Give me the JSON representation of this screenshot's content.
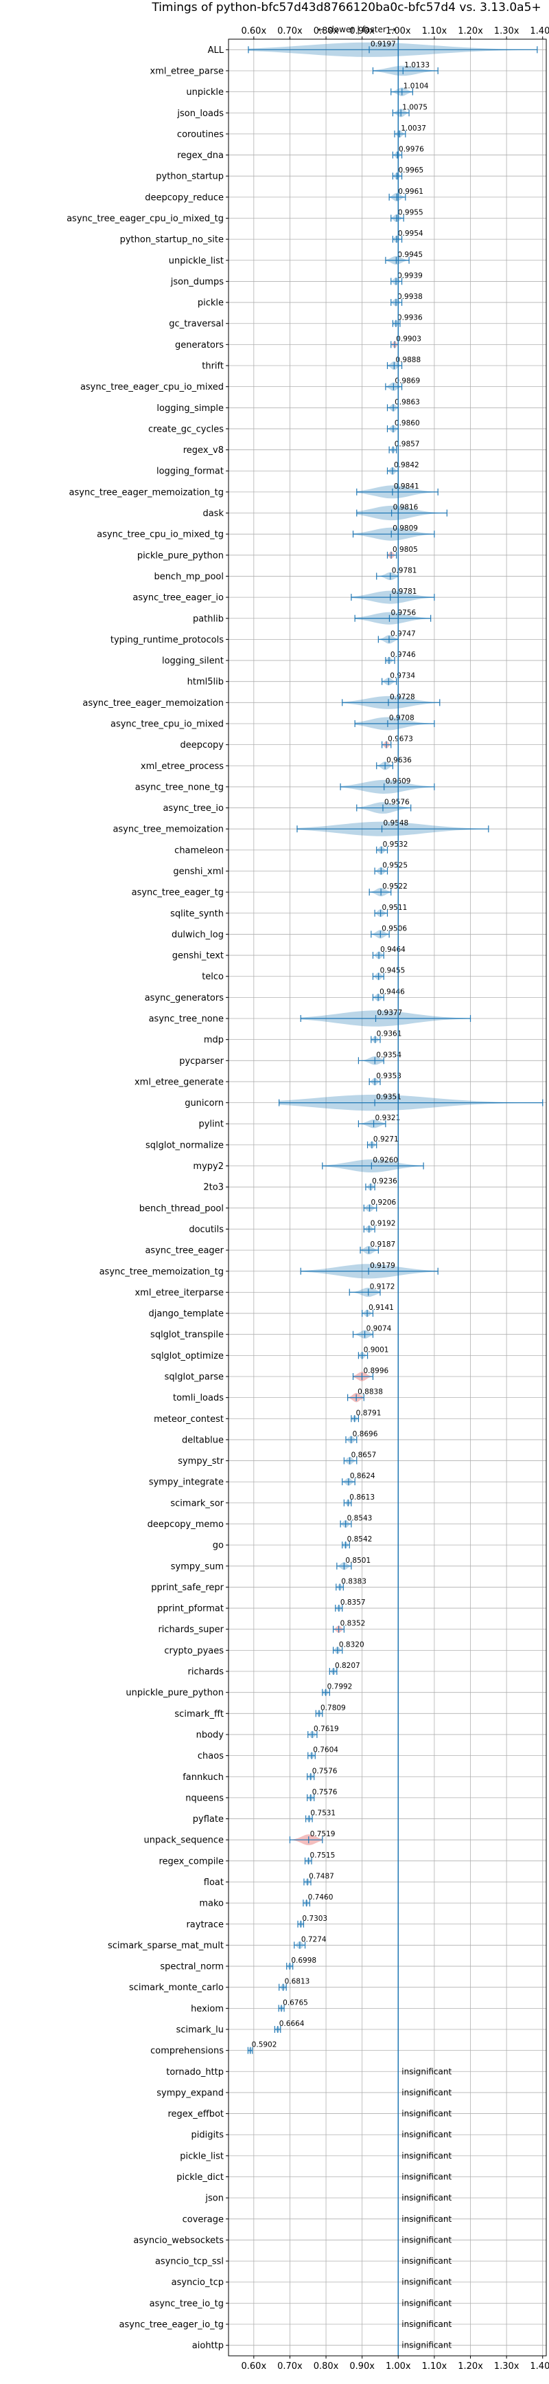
{
  "chart_data": {
    "type": "violin",
    "title": "Timings of python-bfc57d43d8766120ba0c-bfc57d4 vs. 3.13.0a5+",
    "direction_label": "← slower | faster →",
    "x_ticks": [
      "0.60x",
      "0.70x",
      "0.80x",
      "0.90x",
      "1.00x",
      "1.10x",
      "1.20x",
      "1.30x",
      "1.40x"
    ],
    "xlim": [
      0.53,
      1.41
    ],
    "baseline": 1.0,
    "grid": true,
    "colors": {
      "violin": "#1f77b4",
      "significant_slowdown": "#d62728",
      "gridline": "#b0b0b0"
    },
    "benchmarks": [
      {
        "name": "ALL",
        "value": 0.9197,
        "label": "0.9197",
        "spread": 0.06,
        "min": 0.585,
        "max": 1.385
      },
      {
        "name": "xml_etree_parse",
        "value": 1.0133,
        "label": "1.0133",
        "spread": 0.03,
        "min": 0.93,
        "max": 1.11
      },
      {
        "name": "unpickle",
        "value": 1.0104,
        "label": "1.0104",
        "spread": 0.02,
        "min": 0.98,
        "max": 1.04
      },
      {
        "name": "json_loads",
        "value": 1.0075,
        "label": "1.0075",
        "spread": 0.02,
        "min": 0.985,
        "max": 1.03
      },
      {
        "name": "coroutines",
        "value": 1.0037,
        "label": "1.0037",
        "spread": 0.012,
        "min": 0.99,
        "max": 1.02
      },
      {
        "name": "regex_dna",
        "value": 0.9976,
        "label": "0.9976",
        "spread": 0.012,
        "min": 0.985,
        "max": 1.01
      },
      {
        "name": "python_startup",
        "value": 0.9965,
        "label": "0.9965",
        "spread": 0.012,
        "min": 0.985,
        "max": 1.01
      },
      {
        "name": "deepcopy_reduce",
        "value": 0.9961,
        "label": "0.9961",
        "spread": 0.02,
        "min": 0.975,
        "max": 1.02
      },
      {
        "name": "async_tree_eager_cpu_io_mixed_tg",
        "value": 0.9955,
        "label": "0.9955",
        "spread": 0.015,
        "min": 0.98,
        "max": 1.015
      },
      {
        "name": "python_startup_no_site",
        "value": 0.9954,
        "label": "0.9954",
        "spread": 0.012,
        "min": 0.985,
        "max": 1.01
      },
      {
        "name": "unpickle_list",
        "value": 0.9945,
        "label": "0.9945",
        "spread": 0.02,
        "min": 0.965,
        "max": 1.03
      },
      {
        "name": "json_dumps",
        "value": 0.9939,
        "label": "0.9939",
        "spread": 0.015,
        "min": 0.98,
        "max": 1.01
      },
      {
        "name": "pickle",
        "value": 0.9938,
        "label": "0.9938",
        "spread": 0.015,
        "min": 0.98,
        "max": 1.01
      },
      {
        "name": "gc_traversal",
        "value": 0.9936,
        "label": "0.9936",
        "spread": 0.012,
        "min": 0.985,
        "max": 1.005
      },
      {
        "name": "generators",
        "value": 0.9903,
        "label": "0.9903",
        "spread": 0.012,
        "min": 0.98,
        "max": 1.0,
        "slower": true
      },
      {
        "name": "thrift",
        "value": 0.9888,
        "label": "0.9888",
        "spread": 0.02,
        "min": 0.97,
        "max": 1.01
      },
      {
        "name": "async_tree_eager_cpu_io_mixed",
        "value": 0.9869,
        "label": "0.9869",
        "spread": 0.02,
        "min": 0.965,
        "max": 1.01
      },
      {
        "name": "logging_simple",
        "value": 0.9863,
        "label": "0.9863",
        "spread": 0.015,
        "min": 0.97,
        "max": 1.0
      },
      {
        "name": "create_gc_cycles",
        "value": 0.986,
        "label": "0.9860",
        "spread": 0.015,
        "min": 0.97,
        "max": 1.0
      },
      {
        "name": "regex_v8",
        "value": 0.9857,
        "label": "0.9857",
        "spread": 0.01,
        "min": 0.975,
        "max": 0.995
      },
      {
        "name": "logging_format",
        "value": 0.9842,
        "label": "0.9842",
        "spread": 0.015,
        "min": 0.97,
        "max": 1.0
      },
      {
        "name": "async_tree_eager_memoization_tg",
        "value": 0.9841,
        "label": "0.9841",
        "spread": 0.05,
        "min": 0.885,
        "max": 1.11
      },
      {
        "name": "dask",
        "value": 0.9816,
        "label": "0.9816",
        "spread": 0.06,
        "min": 0.885,
        "max": 1.135
      },
      {
        "name": "async_tree_cpu_io_mixed_tg",
        "value": 0.9809,
        "label": "0.9809",
        "spread": 0.05,
        "min": 0.875,
        "max": 1.1
      },
      {
        "name": "pickle_pure_python",
        "value": 0.9805,
        "label": "0.9805",
        "spread": 0.012,
        "min": 0.97,
        "max": 0.995,
        "slower": true
      },
      {
        "name": "bench_mp_pool",
        "value": 0.9781,
        "label": "0.9781",
        "spread": 0.015,
        "min": 0.94,
        "max": 1.0
      },
      {
        "name": "async_tree_eager_io",
        "value": 0.9781,
        "label": "0.9781",
        "spread": 0.05,
        "min": 0.87,
        "max": 1.1
      },
      {
        "name": "pathlib",
        "value": 0.9756,
        "label": "0.9756",
        "spread": 0.045,
        "min": 0.88,
        "max": 1.09
      },
      {
        "name": "typing_runtime_protocols",
        "value": 0.9747,
        "label": "0.9747",
        "spread": 0.02,
        "min": 0.945,
        "max": 1.0
      },
      {
        "name": "logging_silent",
        "value": 0.9746,
        "label": "0.9746",
        "spread": 0.012,
        "min": 0.965,
        "max": 0.99
      },
      {
        "name": "html5lib",
        "value": 0.9734,
        "label": "0.9734",
        "spread": 0.015,
        "min": 0.955,
        "max": 0.995
      },
      {
        "name": "async_tree_eager_memoization",
        "value": 0.9728,
        "label": "0.9728",
        "spread": 0.05,
        "min": 0.845,
        "max": 1.115
      },
      {
        "name": "async_tree_cpu_io_mixed",
        "value": 0.9708,
        "label": "0.9708",
        "spread": 0.05,
        "min": 0.88,
        "max": 1.1
      },
      {
        "name": "deepcopy",
        "value": 0.9673,
        "label": "0.9673",
        "spread": 0.012,
        "min": 0.955,
        "max": 0.98,
        "slower": true
      },
      {
        "name": "xml_etree_process",
        "value": 0.9636,
        "label": "0.9636",
        "spread": 0.02,
        "min": 0.94,
        "max": 0.985
      },
      {
        "name": "async_tree_none_tg",
        "value": 0.9609,
        "label": "0.9609",
        "spread": 0.055,
        "min": 0.84,
        "max": 1.1
      },
      {
        "name": "async_tree_io",
        "value": 0.9576,
        "label": "0.9576",
        "spread": 0.04,
        "min": 0.885,
        "max": 1.035
      },
      {
        "name": "async_tree_memoization",
        "value": 0.9548,
        "label": "0.9548",
        "spread": 0.06,
        "min": 0.72,
        "max": 1.25
      },
      {
        "name": "chameleon",
        "value": 0.9532,
        "label": "0.9532",
        "spread": 0.015,
        "min": 0.94,
        "max": 0.97
      },
      {
        "name": "genshi_xml",
        "value": 0.9525,
        "label": "0.9525",
        "spread": 0.015,
        "min": 0.935,
        "max": 0.97
      },
      {
        "name": "async_tree_eager_tg",
        "value": 0.9522,
        "label": "0.9522",
        "spread": 0.02,
        "min": 0.92,
        "max": 0.98
      },
      {
        "name": "sqlite_synth",
        "value": 0.9511,
        "label": "0.9511",
        "spread": 0.015,
        "min": 0.935,
        "max": 0.97
      },
      {
        "name": "dulwich_log",
        "value": 0.9506,
        "label": "0.9506",
        "spread": 0.02,
        "min": 0.925,
        "max": 0.975
      },
      {
        "name": "genshi_text",
        "value": 0.9464,
        "label": "0.9464",
        "spread": 0.015,
        "min": 0.93,
        "max": 0.96
      },
      {
        "name": "telco",
        "value": 0.9455,
        "label": "0.9455",
        "spread": 0.015,
        "min": 0.93,
        "max": 0.96
      },
      {
        "name": "async_generators",
        "value": 0.9446,
        "label": "0.9446",
        "spread": 0.015,
        "min": 0.93,
        "max": 0.96
      },
      {
        "name": "async_tree_none",
        "value": 0.9377,
        "label": "0.9377",
        "spread": 0.07,
        "min": 0.73,
        "max": 1.2
      },
      {
        "name": "mdp",
        "value": 0.9361,
        "label": "0.9361",
        "spread": 0.012,
        "min": 0.925,
        "max": 0.95
      },
      {
        "name": "pycparser",
        "value": 0.9354,
        "label": "0.9354",
        "spread": 0.02,
        "min": 0.89,
        "max": 0.96
      },
      {
        "name": "xml_etree_generate",
        "value": 0.9353,
        "label": "0.9353",
        "spread": 0.015,
        "min": 0.92,
        "max": 0.95
      },
      {
        "name": "gunicorn",
        "value": 0.9351,
        "label": "0.9351",
        "spread": 0.07,
        "min": 0.67,
        "max": 1.4
      },
      {
        "name": "pylint",
        "value": 0.9321,
        "label": "0.9321",
        "spread": 0.02,
        "min": 0.89,
        "max": 0.965
      },
      {
        "name": "sqlglot_normalize",
        "value": 0.9271,
        "label": "0.9271",
        "spread": 0.012,
        "min": 0.915,
        "max": 0.94
      },
      {
        "name": "mypy2",
        "value": 0.926,
        "label": "0.9260",
        "spread": 0.05,
        "min": 0.79,
        "max": 1.07
      },
      {
        "name": "2to3",
        "value": 0.9236,
        "label": "0.9236",
        "spread": 0.012,
        "min": 0.91,
        "max": 0.935
      },
      {
        "name": "bench_thread_pool",
        "value": 0.9206,
        "label": "0.9206",
        "spread": 0.015,
        "min": 0.905,
        "max": 0.94
      },
      {
        "name": "docutils",
        "value": 0.9192,
        "label": "0.9192",
        "spread": 0.012,
        "min": 0.905,
        "max": 0.935
      },
      {
        "name": "async_tree_eager",
        "value": 0.9187,
        "label": "0.9187",
        "spread": 0.02,
        "min": 0.895,
        "max": 0.945
      },
      {
        "name": "async_tree_memoization_tg",
        "value": 0.9179,
        "label": "0.9179",
        "spread": 0.06,
        "min": 0.73,
        "max": 1.11
      },
      {
        "name": "xml_etree_iterparse",
        "value": 0.9172,
        "label": "0.9172",
        "spread": 0.025,
        "min": 0.865,
        "max": 0.95
      },
      {
        "name": "django_template",
        "value": 0.9141,
        "label": "0.9141",
        "spread": 0.012,
        "min": 0.9,
        "max": 0.93
      },
      {
        "name": "sqlglot_transpile",
        "value": 0.9074,
        "label": "0.9074",
        "spread": 0.02,
        "min": 0.875,
        "max": 0.93
      },
      {
        "name": "sqlglot_optimize",
        "value": 0.9001,
        "label": "0.9001",
        "spread": 0.012,
        "min": 0.89,
        "max": 0.915
      },
      {
        "name": "sqlglot_parse",
        "value": 0.8996,
        "label": "0.8996",
        "spread": 0.025,
        "min": 0.875,
        "max": 0.93,
        "slower": true
      },
      {
        "name": "tomli_loads",
        "value": 0.8838,
        "label": "0.8838",
        "spread": 0.025,
        "min": 0.86,
        "max": 0.905,
        "slower": true
      },
      {
        "name": "meteor_contest",
        "value": 0.8791,
        "label": "0.8791",
        "spread": 0.01,
        "min": 0.87,
        "max": 0.89
      },
      {
        "name": "deltablue",
        "value": 0.8696,
        "label": "0.8696",
        "spread": 0.015,
        "min": 0.855,
        "max": 0.885
      },
      {
        "name": "sympy_str",
        "value": 0.8657,
        "label": "0.8657",
        "spread": 0.015,
        "min": 0.85,
        "max": 0.885
      },
      {
        "name": "sympy_integrate",
        "value": 0.8624,
        "label": "0.8624",
        "spread": 0.015,
        "min": 0.845,
        "max": 0.88
      },
      {
        "name": "scimark_sor",
        "value": 0.8613,
        "label": "0.8613",
        "spread": 0.01,
        "min": 0.85,
        "max": 0.87
      },
      {
        "name": "deepcopy_memo",
        "value": 0.8543,
        "label": "0.8543",
        "spread": 0.015,
        "min": 0.84,
        "max": 0.87
      },
      {
        "name": "go",
        "value": 0.8542,
        "label": "0.8542",
        "spread": 0.012,
        "min": 0.845,
        "max": 0.865
      },
      {
        "name": "sympy_sum",
        "value": 0.8501,
        "label": "0.8501",
        "spread": 0.015,
        "min": 0.83,
        "max": 0.87
      },
      {
        "name": "pprint_safe_repr",
        "value": 0.8383,
        "label": "0.8383",
        "spread": 0.01,
        "min": 0.828,
        "max": 0.848
      },
      {
        "name": "pprint_pformat",
        "value": 0.8357,
        "label": "0.8357",
        "spread": 0.01,
        "min": 0.826,
        "max": 0.845
      },
      {
        "name": "richards_super",
        "value": 0.8352,
        "label": "0.8352",
        "spread": 0.012,
        "min": 0.82,
        "max": 0.85,
        "slower": true
      },
      {
        "name": "crypto_pyaes",
        "value": 0.832,
        "label": "0.8320",
        "spread": 0.012,
        "min": 0.82,
        "max": 0.845
      },
      {
        "name": "richards",
        "value": 0.8207,
        "label": "0.8207",
        "spread": 0.01,
        "min": 0.81,
        "max": 0.83
      },
      {
        "name": "unpickle_pure_python",
        "value": 0.7992,
        "label": "0.7992",
        "spread": 0.01,
        "min": 0.79,
        "max": 0.81
      },
      {
        "name": "scimark_fft",
        "value": 0.7809,
        "label": "0.7809",
        "spread": 0.01,
        "min": 0.772,
        "max": 0.79
      },
      {
        "name": "nbody",
        "value": 0.7619,
        "label": "0.7619",
        "spread": 0.012,
        "min": 0.75,
        "max": 0.775
      },
      {
        "name": "chaos",
        "value": 0.7604,
        "label": "0.7604",
        "spread": 0.01,
        "min": 0.75,
        "max": 0.77
      },
      {
        "name": "fannkuch",
        "value": 0.7576,
        "label": "0.7576",
        "spread": 0.01,
        "min": 0.748,
        "max": 0.767
      },
      {
        "name": "nqueens",
        "value": 0.7576,
        "label": "0.7576",
        "spread": 0.01,
        "min": 0.748,
        "max": 0.767
      },
      {
        "name": "pyflate",
        "value": 0.7531,
        "label": "0.7531",
        "spread": 0.01,
        "min": 0.744,
        "max": 0.762
      },
      {
        "name": "unpack_sequence",
        "value": 0.7519,
        "label": "0.7519",
        "spread": 0.035,
        "min": 0.7,
        "max": 0.79,
        "slower": true
      },
      {
        "name": "regex_compile",
        "value": 0.7515,
        "label": "0.7515",
        "spread": 0.01,
        "min": 0.742,
        "max": 0.76
      },
      {
        "name": "float",
        "value": 0.7487,
        "label": "0.7487",
        "spread": 0.01,
        "min": 0.739,
        "max": 0.758
      },
      {
        "name": "mako",
        "value": 0.746,
        "label": "0.7460",
        "spread": 0.01,
        "min": 0.737,
        "max": 0.755
      },
      {
        "name": "raytrace",
        "value": 0.7303,
        "label": "0.7303",
        "spread": 0.01,
        "min": 0.722,
        "max": 0.738
      },
      {
        "name": "scimark_sparse_mat_mult",
        "value": 0.7274,
        "label": "0.7274",
        "spread": 0.015,
        "min": 0.712,
        "max": 0.742
      },
      {
        "name": "spectral_norm",
        "value": 0.6998,
        "label": "0.6998",
        "spread": 0.01,
        "min": 0.691,
        "max": 0.708
      },
      {
        "name": "scimark_monte_carlo",
        "value": 0.6813,
        "label": "0.6813",
        "spread": 0.012,
        "min": 0.67,
        "max": 0.69
      },
      {
        "name": "hexiom",
        "value": 0.6765,
        "label": "0.6765",
        "spread": 0.008,
        "min": 0.669,
        "max": 0.684
      },
      {
        "name": "scimark_lu",
        "value": 0.6664,
        "label": "0.6664",
        "spread": 0.01,
        "min": 0.658,
        "max": 0.674
      },
      {
        "name": "comprehensions",
        "value": 0.5902,
        "label": "0.5902",
        "spread": 0.008,
        "min": 0.584,
        "max": 0.596
      },
      {
        "name": "tornado_http",
        "insignificant": true
      },
      {
        "name": "sympy_expand",
        "insignificant": true
      },
      {
        "name": "regex_effbot",
        "insignificant": true
      },
      {
        "name": "pidigits",
        "insignificant": true
      },
      {
        "name": "pickle_list",
        "insignificant": true
      },
      {
        "name": "pickle_dict",
        "insignificant": true
      },
      {
        "name": "json",
        "insignificant": true
      },
      {
        "name": "coverage",
        "insignificant": true
      },
      {
        "name": "asyncio_websockets",
        "insignificant": true
      },
      {
        "name": "asyncio_tcp_ssl",
        "insignificant": true
      },
      {
        "name": "asyncio_tcp",
        "insignificant": true
      },
      {
        "name": "async_tree_io_tg",
        "insignificant": true
      },
      {
        "name": "async_tree_eager_io_tg",
        "insignificant": true
      },
      {
        "name": "aiohttp",
        "insignificant": true
      }
    ],
    "insignificant_label": "insignificant"
  }
}
